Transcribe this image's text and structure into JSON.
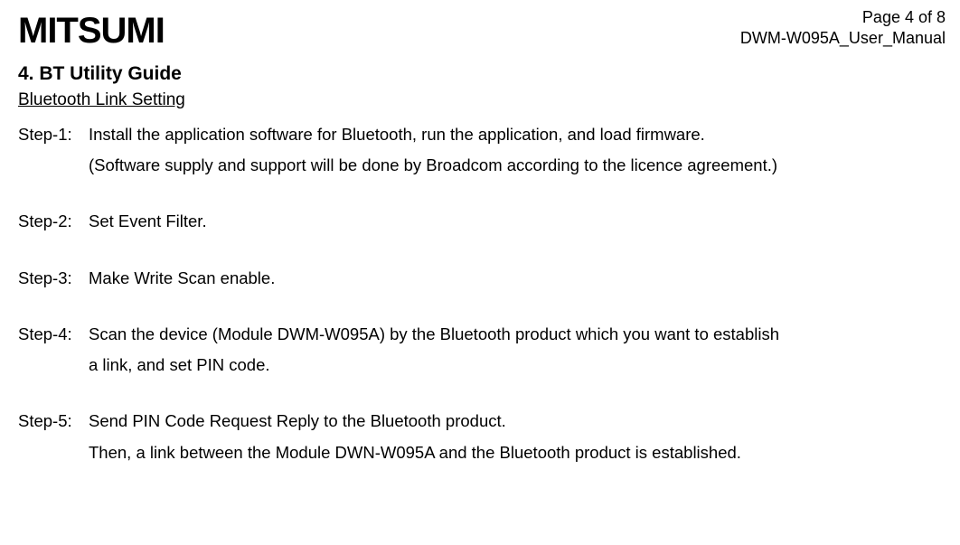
{
  "header": {
    "logo_text": "MITSUMI",
    "page_indicator": "Page 4 of 8",
    "doc_id": "DWM-W095A_User_Manual"
  },
  "section": {
    "title": "4. BT Utility Guide",
    "subsection": "Bluetooth Link Setting"
  },
  "steps": [
    {
      "label": "Step-1:",
      "lines": [
        "Install the application software for Bluetooth, run the application, and load firmware.",
        "(Software supply and support will be done by Broadcom according to the licence agreement.)"
      ]
    },
    {
      "label": "Step-2:",
      "lines": [
        "Set Event Filter."
      ]
    },
    {
      "label": "Step-3:",
      "lines": [
        "Make Write Scan enable."
      ]
    },
    {
      "label": "Step-4:",
      "lines": [
        "Scan the device (Module DWM-W095A) by the Bluetooth product which you want to establish",
        "a link, and set PIN code."
      ]
    },
    {
      "label": "Step-5:",
      "lines": [
        "Send PIN Code Request Reply to the Bluetooth product.",
        "Then, a link between the Module DWN-W095A and the Bluetooth product is established."
      ]
    }
  ]
}
